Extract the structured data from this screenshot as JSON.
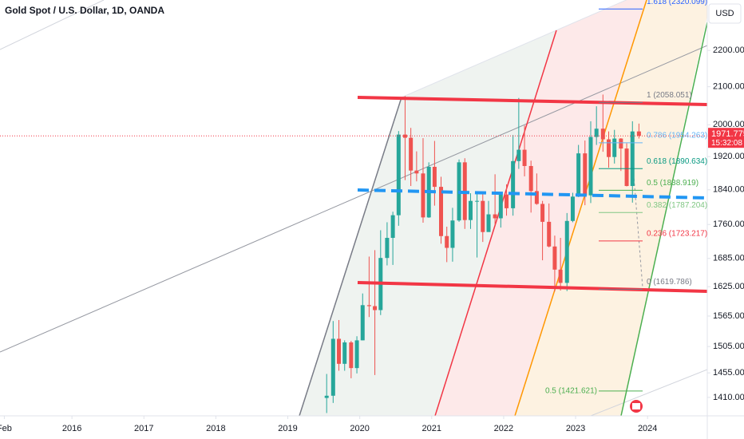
{
  "chart_data": {
    "type": "candlestick",
    "title": "Gold Spot / U.S. Dollar, 1D, OANDA",
    "currency": "USD",
    "log_scale": true,
    "up_color": "#26a69a",
    "down_color": "#ef5350",
    "xlim": [
      2015,
      2024.83
    ],
    "xticks": [
      {
        "value": 2015.06,
        "label": "Feb"
      },
      2016,
      2017,
      2018,
      2019,
      2020,
      2021,
      2022,
      2023,
      2024
    ],
    "ylim": [
      1377,
      2347
    ],
    "yticks": [
      {
        "value": 1410,
        "label": "1410.000"
      },
      {
        "value": 1455,
        "label": "1455.000"
      },
      {
        "value": 1505,
        "label": "1505.000"
      },
      {
        "value": 1565,
        "label": "1565.000"
      },
      {
        "value": 1625,
        "label": "1625.000"
      },
      {
        "value": 1685,
        "label": "1685.000"
      },
      {
        "value": 1760,
        "label": "1760.000"
      },
      {
        "value": 1840,
        "label": "1840.000"
      },
      {
        "value": 1920,
        "label": "1920.000"
      },
      {
        "value": 2000,
        "label": "2000.000"
      },
      {
        "value": 2100,
        "label": "2100.000"
      },
      {
        "value": 2200,
        "label": "2200.000"
      }
    ],
    "x": [
      2019.54,
      2019.63,
      2019.71,
      2019.79,
      2019.88,
      2019.96,
      2020.04,
      2020.13,
      2020.21,
      2020.29,
      2020.38,
      2020.46,
      2020.54,
      2020.63,
      2020.71,
      2020.79,
      2020.88,
      2020.96,
      2021.04,
      2021.13,
      2021.21,
      2021.29,
      2021.38,
      2021.46,
      2021.54,
      2021.63,
      2021.71,
      2021.79,
      2021.88,
      2021.96,
      2022.04,
      2022.13,
      2022.21,
      2022.29,
      2022.38,
      2022.46,
      2022.54,
      2022.63,
      2022.71,
      2022.79,
      2022.88,
      2022.96,
      2023.04,
      2023.13,
      2023.21,
      2023.29,
      2023.38,
      2023.46,
      2023.54,
      2023.63,
      2023.71,
      2023.79,
      2023.88
    ],
    "open": [
      1409,
      1413,
      1520,
      1472,
      1513,
      1464,
      1517,
      1587,
      1585,
      1577,
      1686,
      1730,
      1781,
      1975,
      1967,
      1886,
      1879,
      1776,
      1895,
      1847,
      1734,
      1708,
      1769,
      1906,
      1770,
      1814,
      1814,
      1743,
      1783,
      1774,
      1829,
      1797,
      1909,
      1937,
      1897,
      1837,
      1807,
      1766,
      1711,
      1661,
      1633,
      1768,
      1824,
      1928,
      1827,
      1969,
      1990,
      1963,
      1919,
      1965,
      1940,
      1849,
      1983
    ],
    "high": [
      1453,
      1555,
      1557,
      1517,
      1516,
      1525,
      1611,
      1689,
      1703,
      1747,
      1765,
      1789,
      1984,
      2075,
      1992,
      1933,
      1966,
      1906,
      1959,
      1871,
      1755,
      1798,
      1913,
      1916,
      1832,
      1834,
      1834,
      1814,
      1877,
      1831,
      1853,
      1974,
      2070,
      1998,
      1910,
      1879,
      1814,
      1808,
      1735,
      1730,
      1786,
      1833,
      1949,
      1960,
      2009,
      2048,
      2079,
      1983,
      1987,
      1966,
      1953,
      2009,
      2003
    ],
    "low": [
      1382,
      1400,
      1459,
      1459,
      1445,
      1454,
      1517,
      1563,
      1451,
      1567,
      1670,
      1671,
      1757,
      1863,
      1849,
      1860,
      1764,
      1775,
      1803,
      1717,
      1677,
      1678,
      1766,
      1750,
      1750,
      1687,
      1721,
      1746,
      1759,
      1753,
      1780,
      1780,
      1890,
      1872,
      1787,
      1805,
      1681,
      1709,
      1615,
      1617,
      1616,
      1765,
      1823,
      1804,
      1809,
      1949,
      1932,
      1893,
      1903,
      1885,
      1848,
      1810,
      1965
    ],
    "close": [
      1413,
      1520,
      1472,
      1513,
      1464,
      1517,
      1587,
      1585,
      1577,
      1686,
      1730,
      1781,
      1975,
      1967,
      1886,
      1879,
      1776,
      1895,
      1847,
      1734,
      1708,
      1769,
      1906,
      1770,
      1814,
      1814,
      1743,
      1783,
      1774,
      1829,
      1797,
      1909,
      1937,
      1897,
      1837,
      1807,
      1766,
      1711,
      1661,
      1633,
      1768,
      1824,
      1928,
      1827,
      1969,
      1990,
      1963,
      1919,
      1965,
      1940,
      1849,
      1983,
      1972
    ],
    "last_price": 1971.775,
    "countdown": "15:32:08",
    "fib_levels": [
      {
        "label": "1.618 (2320.099)",
        "value": 2320.099,
        "color": "#2962ff"
      },
      {
        "label": "1 (2058.051)",
        "value": 2058.051,
        "color": "#787b86"
      },
      {
        "label": "0.786 (1954.263)",
        "value": 1954.263,
        "color": "#64b5f6"
      },
      {
        "label": "0.618 (1890.634)",
        "value": 1890.634,
        "color": "#089981"
      },
      {
        "label": "0.5 (1838.919)",
        "value": 1838.919,
        "color": "#4caf50"
      },
      {
        "label": "0.382 (1787.204)",
        "value": 1787.204,
        "color": "#81c784"
      },
      {
        "label": "0.236 (1723.217)",
        "value": 1723.217,
        "color": "#f23645"
      },
      {
        "label": "0 (1619.786)",
        "value": 1619.786,
        "color": "#787b86"
      }
    ],
    "lower_fib": {
      "label": "0.5 (1421.621)",
      "value": 1421.621,
      "color": "#4caf50"
    }
  }
}
